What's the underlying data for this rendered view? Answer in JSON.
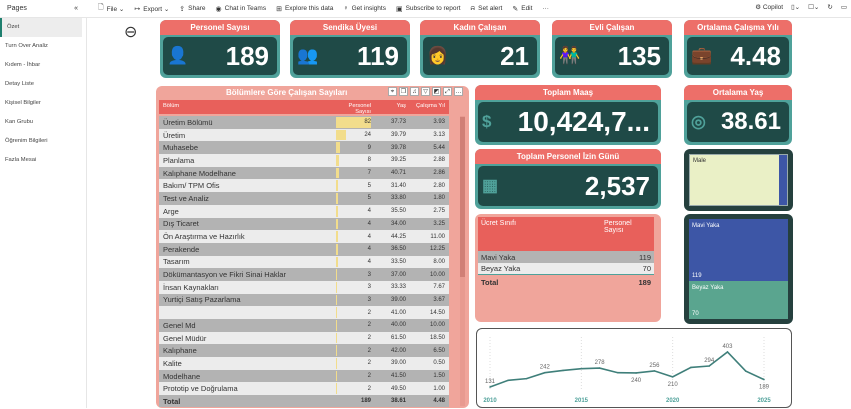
{
  "topbar": {
    "pages": "Pages",
    "items": [
      {
        "icon": "file-icon",
        "label": "File ⌄"
      },
      {
        "icon": "export-icon",
        "label": "Export ⌄"
      },
      {
        "icon": "share-icon",
        "label": "Share"
      },
      {
        "icon": "teams-icon",
        "label": "Chat in Teams"
      },
      {
        "icon": "explore-icon",
        "label": "Explore this data"
      },
      {
        "icon": "insights-icon",
        "label": "Get insights"
      },
      {
        "icon": "subscribe-icon",
        "label": "Subscribe to report"
      },
      {
        "icon": "alert-icon",
        "label": "Set alert"
      },
      {
        "icon": "edit-icon",
        "label": "Edit"
      },
      {
        "icon": "more-icon",
        "label": "···"
      }
    ],
    "copilot": "Copilot"
  },
  "sidebar": {
    "items": [
      "Özet",
      "Turn Over Analiz",
      "Kıdem - İhbar",
      "Detay Liste",
      "Kişisel Bilgiler",
      "Kan Grubu",
      "Öğrenim Bilgileri",
      "Fazla Mesai"
    ]
  },
  "kpis": [
    {
      "title": "Personel Sayısı",
      "value": "189"
    },
    {
      "title": "Sendika Üyesi",
      "value": "119"
    },
    {
      "title": "Kadın Çalışan",
      "value": "21"
    },
    {
      "title": "Evli Çalışan",
      "value": "135"
    },
    {
      "title": "Ortalama Çalışma Yılı",
      "value": "4.48"
    },
    {
      "title": "Toplam Maaş",
      "value": "10,424,7..."
    },
    {
      "title": "Ortalama Yaş",
      "value": "38.61"
    },
    {
      "title": "Toplam Personel İzin Günü",
      "value": "2,537"
    }
  ],
  "dept_table": {
    "title": "Bölümlere Göre Çalışan Sayıları",
    "headers": [
      "Bölüm",
      "Personel Sayısı",
      "Yaş",
      "Çalışma Yıl"
    ],
    "rows": [
      [
        "Üretim Bölümü",
        82,
        "37.73",
        "3.93"
      ],
      [
        "Üretim",
        24,
        "39.79",
        "3.13"
      ],
      [
        "Muhasebe",
        9,
        "39.78",
        "5.44"
      ],
      [
        "Planlama",
        8,
        "39.25",
        "2.88"
      ],
      [
        "Kalıphane Modelhane",
        7,
        "40.71",
        "2.86"
      ],
      [
        "Bakım/ TPM Ofis",
        5,
        "31.40",
        "2.80"
      ],
      [
        "Test ve Analiz",
        5,
        "33.80",
        "1.80"
      ],
      [
        "Arge",
        4,
        "35.50",
        "2.75"
      ],
      [
        "Dış Ticaret",
        4,
        "34.00",
        "3.25"
      ],
      [
        "Ön Araştırma ve Hazırlık",
        4,
        "44.25",
        "11.00"
      ],
      [
        "Perakende",
        4,
        "36.50",
        "12.25"
      ],
      [
        "Tasarım",
        4,
        "33.50",
        "8.00"
      ],
      [
        "Dökümantasyon ve Fikri Sinai Haklar",
        3,
        "37.00",
        "10.00"
      ],
      [
        "İnsan Kaynakları",
        3,
        "33.33",
        "7.67"
      ],
      [
        "Yurtiçi Satış Pazarlama",
        3,
        "39.00",
        "3.67"
      ],
      [
        "",
        2,
        "41.00",
        "14.50"
      ],
      [
        "Genel Md",
        2,
        "40.00",
        "10.00"
      ],
      [
        "Genel Müdür",
        2,
        "61.50",
        "18.50"
      ],
      [
        "Kalıphane",
        2,
        "42.00",
        "6.50"
      ],
      [
        "Kalite",
        2,
        "39.00",
        "0.50"
      ],
      [
        "Modelhane",
        2,
        "41.50",
        "1.50"
      ],
      [
        "Prototip ve Doğrulama",
        2,
        "49.50",
        "1.00"
      ]
    ],
    "total": [
      "Total",
      "189",
      "38.61",
      "4.48"
    ]
  },
  "ucret": {
    "headers": [
      "Ücret Sınıfı",
      "Personel Sayısı"
    ],
    "rows": [
      [
        "Mavi Yaka",
        "119"
      ],
      [
        "Beyaz Yaka",
        "70"
      ]
    ],
    "total": [
      "Total",
      "189"
    ]
  },
  "gender_tree": {
    "label": "Male",
    "fill": "#eaf0c6",
    "accent": "#3d56a6"
  },
  "yaka_tree": [
    {
      "label": "Mavi Yaka",
      "value": "119",
      "color": "#3d56a6"
    },
    {
      "label": "Beyaz Yaka",
      "value": "70",
      "color": "#5aa58f"
    }
  ],
  "chart_data": {
    "type": "line",
    "x": [
      2010,
      2011,
      2012,
      2013,
      2014,
      2015,
      2016,
      2017,
      2018,
      2019,
      2020,
      2021,
      2022,
      2023,
      2024,
      2025
    ],
    "values": [
      131,
      183,
      196,
      242,
      260,
      273,
      278,
      242,
      240,
      256,
      210,
      283,
      294,
      403,
      255,
      189
    ],
    "labels": {
      "2010": 131,
      "2013": 242,
      "2016": 278,
      "2018": 240,
      "2019": 256,
      "2020": 210,
      "2022": 294,
      "2023": 403,
      "2025": 189
    },
    "xticks": [
      2010,
      2015,
      2020,
      2025
    ],
    "color": "#3f7f7a"
  }
}
